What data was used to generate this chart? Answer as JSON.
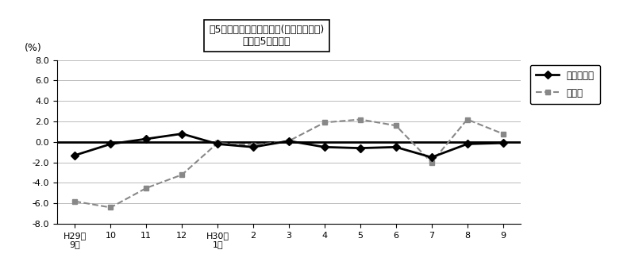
{
  "x_labels": [
    "H29年\n9月",
    "10",
    "11",
    "12",
    "H30年\n1月",
    "2",
    "3",
    "4",
    "5",
    "6",
    "7",
    "8",
    "9"
  ],
  "series1_name": "調査産業計",
  "series1_values": [
    -1.3,
    -0.2,
    0.3,
    0.8,
    -0.2,
    -0.5,
    0.1,
    -0.5,
    -0.6,
    -0.5,
    -1.5,
    -0.2,
    -0.1
  ],
  "series2_name": "製造業",
  "series2_values": [
    -5.8,
    -6.4,
    -4.5,
    -3.2,
    -0.1,
    -0.3,
    0.1,
    1.9,
    2.2,
    1.6,
    -2.0,
    2.2,
    0.8
  ],
  "ylabel": "(%)",
  "ylim": [
    -8.0,
    8.0
  ],
  "yticks": [
    -8.0,
    -6.0,
    -4.0,
    -2.0,
    0.0,
    2.0,
    4.0,
    6.0,
    8.0
  ],
  "ytick_labels": [
    "╶8.0",
    "╶6.0",
    "╶4.0",
    "╶2.0",
    "0.0",
    "2.0",
    "4.0",
    "6.0",
    "8.0"
  ],
  "title_box_line1": "囵5　常用労働者数の推移(対前年同月比)",
  "title_box_line2": "－規横5人以上－",
  "series1_color": "#000000",
  "series2_color": "#888888",
  "bg_color": "#ffffff",
  "grid_color": "#bbbbbb"
}
